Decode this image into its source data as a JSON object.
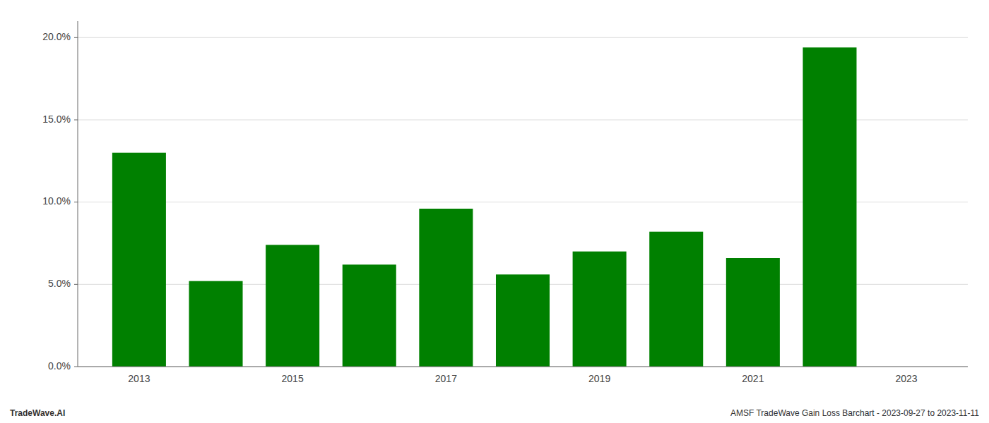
{
  "chart_data": {
    "type": "bar",
    "x": [
      2013,
      2014,
      2015,
      2016,
      2017,
      2018,
      2019,
      2020,
      2021,
      2022
    ],
    "values": [
      0.13,
      0.052,
      0.074,
      0.062,
      0.096,
      0.056,
      0.07,
      0.082,
      0.066,
      0.194
    ],
    "color": "#008000",
    "xlim": [
      2012.2,
      2023.8
    ],
    "xticks": [
      2013,
      2015,
      2017,
      2019,
      2021,
      2023
    ],
    "ylim": [
      0,
      0.21
    ],
    "yticks": [
      {
        "value": 0.0,
        "label": "0.0%"
      },
      {
        "value": 0.05,
        "label": "5.0%"
      },
      {
        "value": 0.1,
        "label": "10.0%"
      },
      {
        "value": 0.15,
        "label": "15.0%"
      },
      {
        "value": 0.2,
        "label": "20.0%"
      }
    ],
    "grid": true,
    "annotations": [
      "TradeWave.AI",
      "AMSF TradeWave Gain Loss Barchart - 2023-09-27 to 2023-11-11"
    ]
  }
}
